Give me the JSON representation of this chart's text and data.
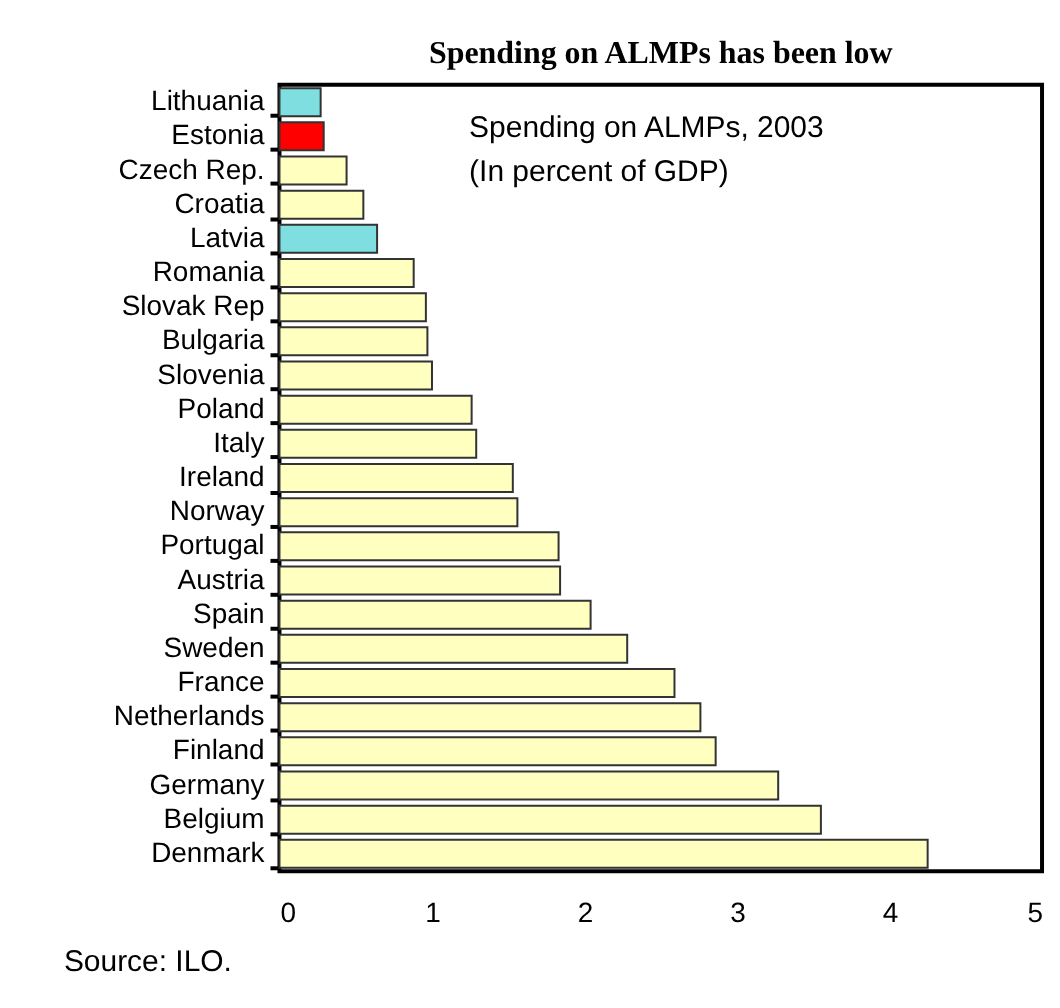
{
  "chart_data": {
    "type": "bar",
    "orientation": "horizontal",
    "title": "Spending on ALMPs has been low",
    "categories": [
      "Lithuania",
      "Estonia",
      "Czech Rep.",
      "Croatia",
      "Latvia",
      "Romania",
      "Slovak Rep",
      "Bulgaria",
      "Slovenia",
      "Poland",
      "Italy",
      "Ireland",
      "Norway",
      "Portugal",
      "Austria",
      "Spain",
      "Sweden",
      "France",
      "Netherlands",
      "Finland",
      "Germany",
      "Belgium",
      "Denmark"
    ],
    "values": [
      0.27,
      0.29,
      0.44,
      0.55,
      0.64,
      0.88,
      0.96,
      0.97,
      1.0,
      1.26,
      1.29,
      1.53,
      1.56,
      1.83,
      1.84,
      2.04,
      2.28,
      2.59,
      2.76,
      2.86,
      3.27,
      3.55,
      4.25
    ],
    "colors": [
      "#7fdfe0",
      "#ff0000",
      "#ffffc0",
      "#ffffc0",
      "#7fdfe0",
      "#ffffc0",
      "#ffffc0",
      "#ffffc0",
      "#ffffc0",
      "#ffffc0",
      "#ffffc0",
      "#ffffc0",
      "#ffffc0",
      "#ffffc0",
      "#ffffc0",
      "#ffffc0",
      "#ffffc0",
      "#ffffc0",
      "#ffffc0",
      "#ffffc0",
      "#ffffc0",
      "#ffffc0",
      "#ffffc0"
    ],
    "xlim": [
      0,
      5
    ],
    "xticks": [
      0,
      1,
      2,
      3,
      4,
      5
    ],
    "grid": false,
    "annotations": [
      "Spending on ALMPs, 2003",
      "(In percent of GDP)",
      "Source: ILO."
    ]
  }
}
